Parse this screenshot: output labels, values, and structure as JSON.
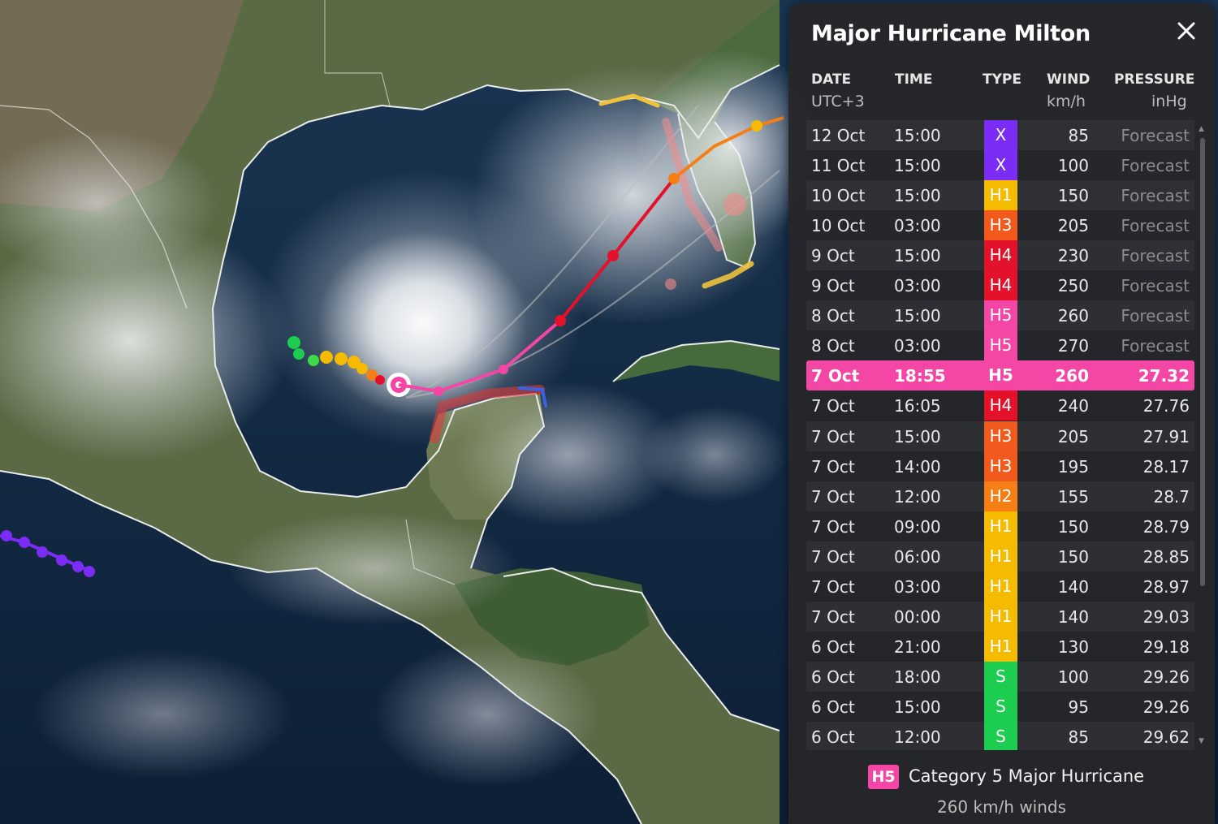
{
  "colors": {
    "X": "#7b2cf5",
    "H1": "#f5bb00",
    "H2": "#f57f14",
    "H3": "#f25a1d",
    "H4": "#e3112a",
    "H5": "#f346a5",
    "S": "#1dcd4f",
    "current_row": "#f346a5"
  },
  "panel": {
    "title": "Major Hurricane Milton",
    "close_icon": "close-icon",
    "headers": {
      "date": "DATE",
      "time": "TIME",
      "type": "TYPE",
      "wind": "WIND",
      "pressure": "PRESSURE"
    },
    "subheaders": {
      "date": "UTC+3",
      "wind": "km/h",
      "pressure": "inHg"
    },
    "rows": [
      {
        "date": "12 Oct",
        "time": "15:00",
        "type": "X",
        "wind": "85",
        "pressure": "Forecast"
      },
      {
        "date": "11 Oct",
        "time": "15:00",
        "type": "X",
        "wind": "100",
        "pressure": "Forecast"
      },
      {
        "date": "10 Oct",
        "time": "15:00",
        "type": "H1",
        "wind": "150",
        "pressure": "Forecast"
      },
      {
        "date": "10 Oct",
        "time": "03:00",
        "type": "H3",
        "wind": "205",
        "pressure": "Forecast"
      },
      {
        "date": "9 Oct",
        "time": "15:00",
        "type": "H4",
        "wind": "230",
        "pressure": "Forecast"
      },
      {
        "date": "9 Oct",
        "time": "03:00",
        "type": "H4",
        "wind": "250",
        "pressure": "Forecast"
      },
      {
        "date": "8 Oct",
        "time": "15:00",
        "type": "H5",
        "wind": "260",
        "pressure": "Forecast"
      },
      {
        "date": "8 Oct",
        "time": "03:00",
        "type": "H5",
        "wind": "270",
        "pressure": "Forecast"
      },
      {
        "date": "7 Oct",
        "time": "18:55",
        "type": "H5",
        "wind": "260",
        "pressure": "27.32",
        "current": true
      },
      {
        "date": "7 Oct",
        "time": "16:05",
        "type": "H4",
        "wind": "240",
        "pressure": "27.76"
      },
      {
        "date": "7 Oct",
        "time": "15:00",
        "type": "H3",
        "wind": "205",
        "pressure": "27.91"
      },
      {
        "date": "7 Oct",
        "time": "14:00",
        "type": "H3",
        "wind": "195",
        "pressure": "28.17"
      },
      {
        "date": "7 Oct",
        "time": "12:00",
        "type": "H2",
        "wind": "155",
        "pressure": "28.7"
      },
      {
        "date": "7 Oct",
        "time": "09:00",
        "type": "H1",
        "wind": "150",
        "pressure": "28.79"
      },
      {
        "date": "7 Oct",
        "time": "06:00",
        "type": "H1",
        "wind": "150",
        "pressure": "28.85"
      },
      {
        "date": "7 Oct",
        "time": "03:00",
        "type": "H1",
        "wind": "140",
        "pressure": "28.97"
      },
      {
        "date": "7 Oct",
        "time": "00:00",
        "type": "H1",
        "wind": "140",
        "pressure": "29.03"
      },
      {
        "date": "6 Oct",
        "time": "21:00",
        "type": "H1",
        "wind": "130",
        "pressure": "29.18"
      },
      {
        "date": "6 Oct",
        "time": "18:00",
        "type": "S",
        "wind": "100",
        "pressure": "29.26"
      },
      {
        "date": "6 Oct",
        "time": "15:00",
        "type": "S",
        "wind": "95",
        "pressure": "29.26"
      },
      {
        "date": "6 Oct",
        "time": "12:00",
        "type": "S",
        "wind": "85",
        "pressure": "29.62"
      }
    ],
    "legend": {
      "badge": "H5",
      "label": "Category 5 Major Hurricane",
      "winds": "260 km/h winds"
    }
  }
}
